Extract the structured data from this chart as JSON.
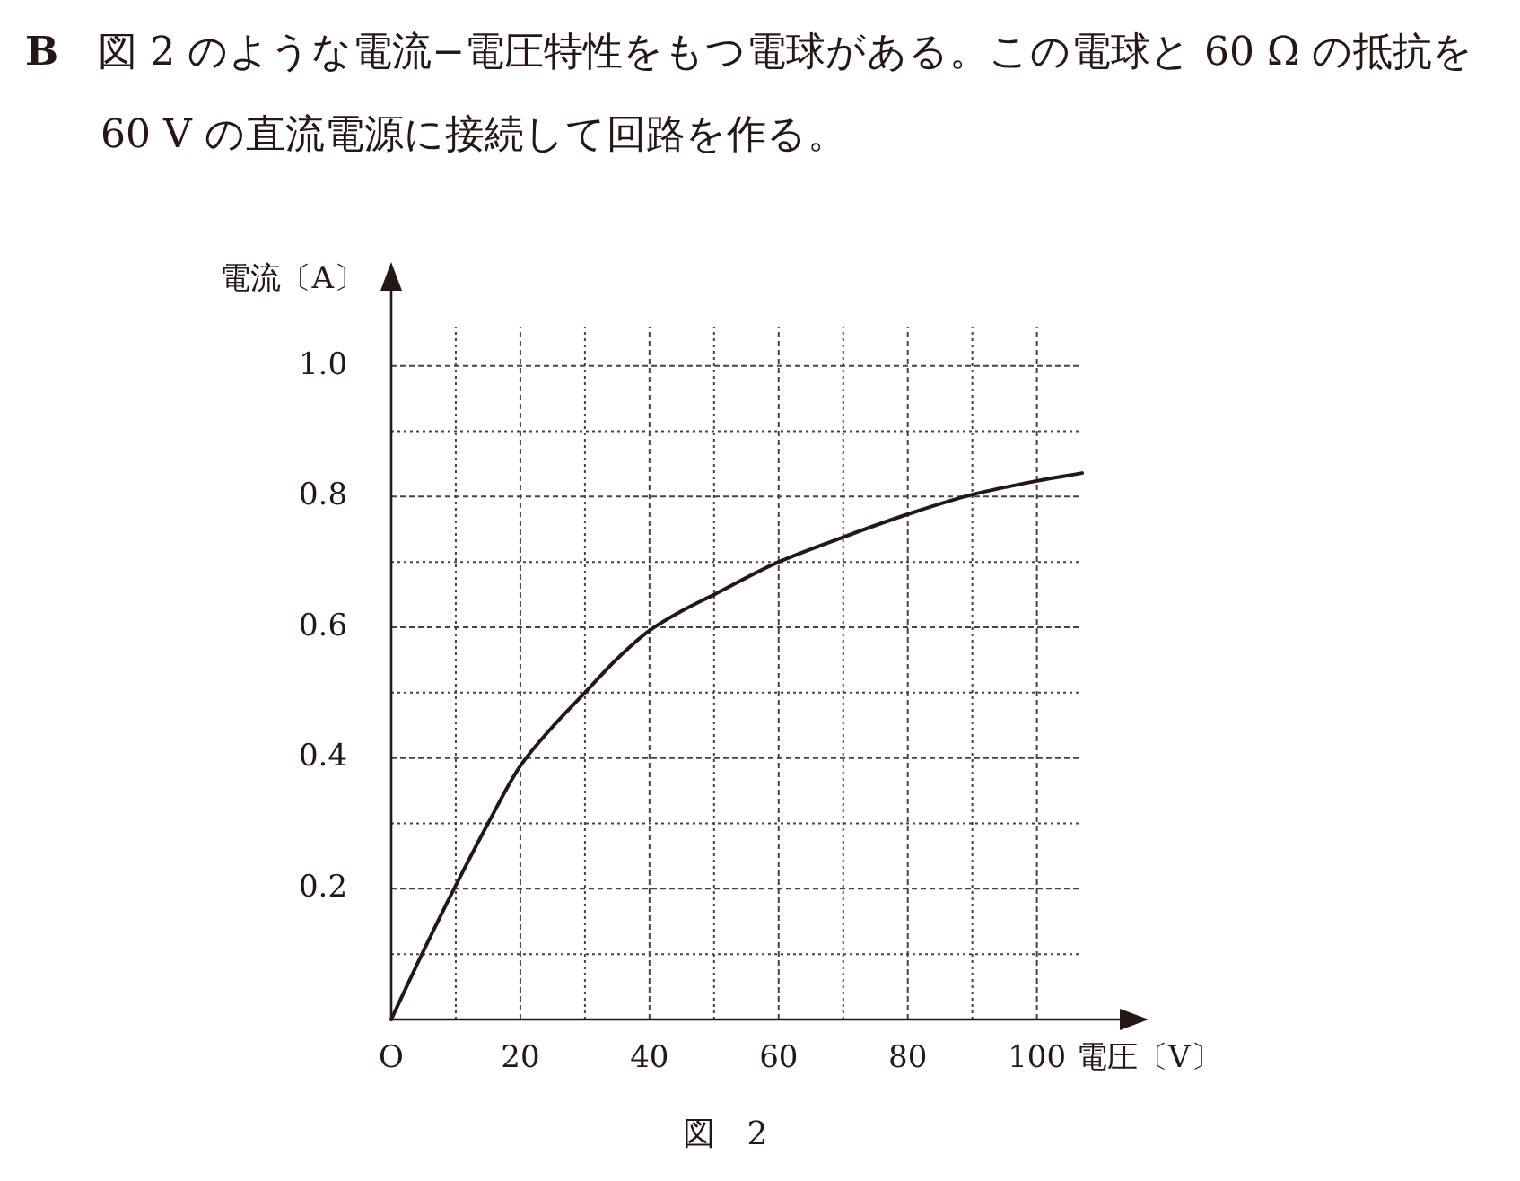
{
  "chart_data": {
    "type": "line",
    "title": "**B**　図 2 のような電流−電圧特性をもつ電球がある。この電球と 60 Ω の抵抗を 60 V の直流電源に接続して回路を作る。",
    "xlabel": "電圧〔V〕",
    "ylabel": "電流〔A〕",
    "x": [
      0,
      5,
      10,
      15,
      20,
      25,
      30,
      35,
      40,
      45,
      50,
      60,
      70,
      80,
      90,
      100,
      107
    ],
    "series": [
      {
        "color": "#231815",
        "values": [
          0,
          0.105,
          0.205,
          0.3,
          0.388,
          0.448,
          0.5,
          0.552,
          0.595,
          0.625,
          0.65,
          0.7,
          0.738,
          0.773,
          0.803,
          0.824,
          0.836
        ]
      }
    ],
    "xlim": [
      0,
      107
    ],
    "ylim": [
      0,
      1.06
    ],
    "xticks": [
      {
        "value": 0,
        "label": "O"
      },
      {
        "value": 10,
        "label": null
      },
      20,
      {
        "value": 30,
        "label": null
      },
      40,
      {
        "value": 50,
        "label": null
      },
      60,
      {
        "value": 70,
        "label": null
      },
      80,
      {
        "value": 90,
        "label": null
      },
      100
    ],
    "yticks": [
      {
        "value": 0.1,
        "label": null
      },
      0.2,
      {
        "value": 0.3,
        "label": null
      },
      0.4,
      {
        "value": 0.5,
        "label": null
      },
      0.6,
      {
        "value": 0.7,
        "label": null
      },
      0.8,
      {
        "value": 0.9,
        "label": null
      },
      {
        "value": 1.0,
        "label": "1.0"
      }
    ],
    "grid": true,
    "marker": "none",
    "line_style": "solid",
    "annotations": [
      "図　2"
    ]
  }
}
